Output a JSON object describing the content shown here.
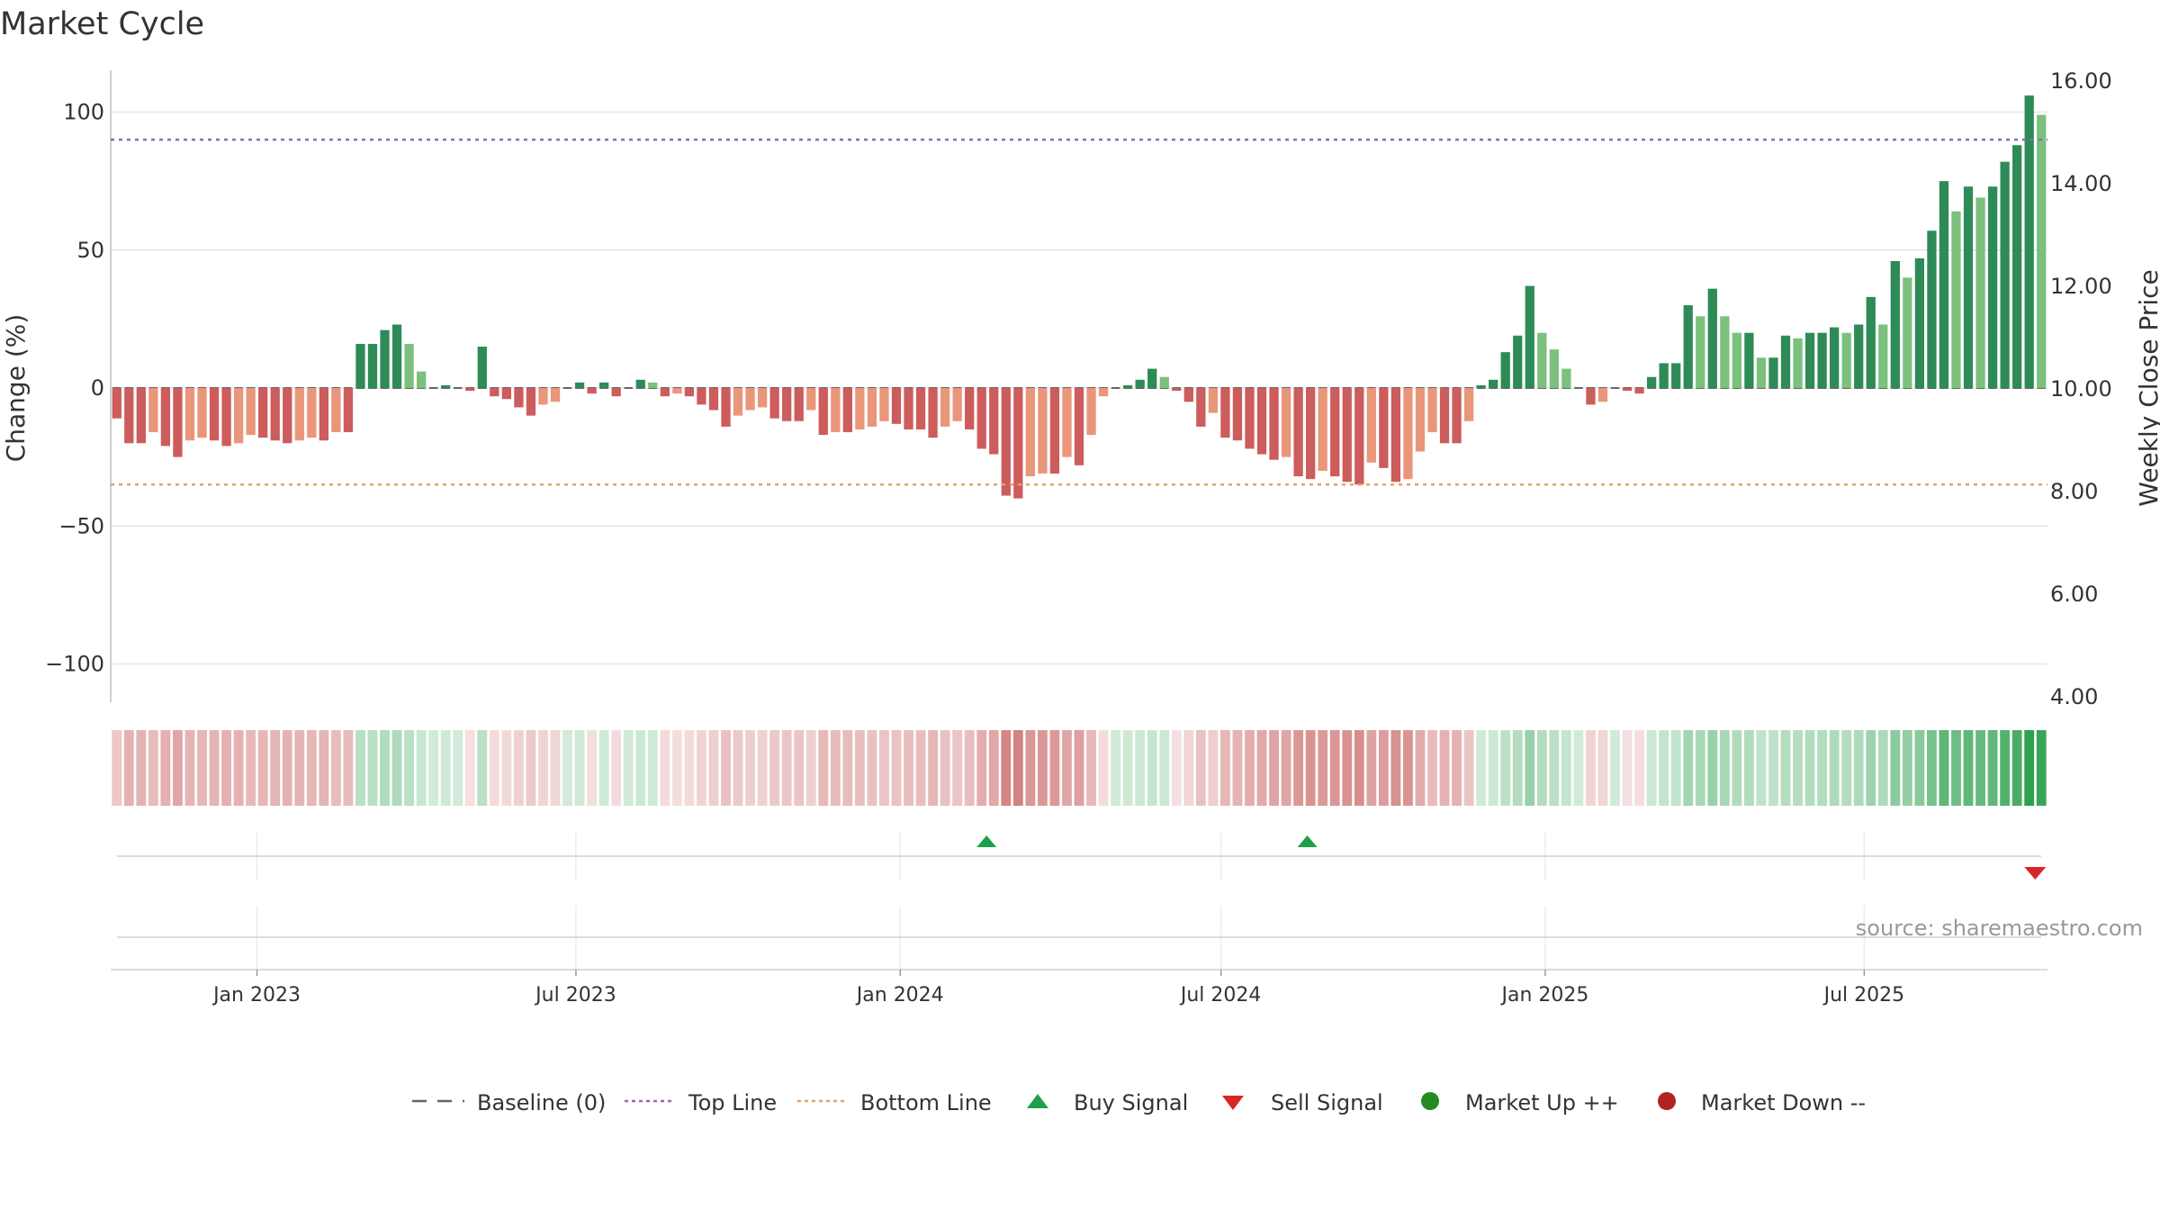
{
  "chart_data": {
    "type": "bar",
    "title": "Market Cycle",
    "ylabel": "Change (%)",
    "y2label": "Weekly Close Price",
    "ylim": [
      -115,
      115
    ],
    "y2lim": [
      4,
      16
    ],
    "yticks": [
      100,
      50,
      0,
      -50,
      -100
    ],
    "ytick_labels": [
      "100",
      "50",
      "0",
      "−50",
      "−100"
    ],
    "y2ticks": [
      16,
      14,
      12,
      10,
      8,
      6,
      4
    ],
    "y2tick_labels": [
      "16.00",
      "14.00",
      "12.00",
      "10.00",
      "8.00",
      "6.00",
      "4.00"
    ],
    "x_start": "2022-10-10",
    "x_end": "2025-10-13",
    "xticks": [
      {
        "date": "2023-01-01",
        "label": "Jan 2023"
      },
      {
        "date": "2023-07-01",
        "label": "Jul 2023"
      },
      {
        "date": "2024-01-01",
        "label": "Jan 2024"
      },
      {
        "date": "2024-07-01",
        "label": "Jul 2024"
      },
      {
        "date": "2025-01-01",
        "label": "Jan 2025"
      },
      {
        "date": "2025-07-01",
        "label": "Jul 2025"
      }
    ],
    "reference_lines": [
      {
        "name": "Top Line",
        "value": 90,
        "color": "#9467bd",
        "style": "dotted"
      },
      {
        "name": "Bottom Line",
        "value": -35,
        "color": "#e8a064",
        "style": "dotted"
      }
    ],
    "weekly_change_pct": [
      -11,
      -20,
      -20,
      -16,
      -21,
      -25,
      -19,
      -18,
      -19,
      -21,
      -20,
      -17,
      -18,
      -19,
      -20,
      -19,
      -18,
      -19,
      -16,
      -16,
      16,
      16,
      21,
      23,
      16,
      6,
      0,
      1,
      0,
      -1,
      15,
      -3,
      -4,
      -7,
      -10,
      -6,
      -5,
      0,
      2,
      -2,
      2,
      -3,
      0,
      3,
      2,
      -3,
      -2,
      -3,
      -6,
      -8,
      -14,
      -10,
      -8,
      -7,
      -11,
      -12,
      -12,
      -8,
      -17,
      -16,
      -16,
      -15,
      -14,
      -12,
      -13,
      -15,
      -15,
      -18,
      -14,
      -12,
      -15,
      -22,
      -24,
      -39,
      -40,
      -32,
      -31,
      -31,
      -25,
      -28,
      -17,
      -3,
      0,
      1,
      3,
      7,
      4,
      -1,
      -5,
      -14,
      -9,
      -18,
      -19,
      -22,
      -24,
      -26,
      -25,
      -32,
      -33,
      -30,
      -32,
      -34,
      -35,
      -27,
      -29,
      -34,
      -33,
      -23,
      -16,
      -20,
      -20,
      -12,
      1,
      3,
      13,
      19,
      37,
      20,
      14,
      7,
      0,
      -6,
      -5,
      0,
      -1,
      -2,
      4,
      9,
      9,
      30,
      26,
      36,
      26,
      20,
      20,
      11,
      11,
      19,
      18,
      20,
      20,
      22,
      20,
      23,
      33,
      23,
      46,
      40,
      47,
      57,
      75,
      64,
      73,
      69,
      73,
      82,
      88,
      106,
      99
    ],
    "series_colors": {
      "up_strong": "#2e8b57",
      "up_weak": "#7cc07e",
      "down_strong": "#cd5c5c",
      "down_weak": "#e9967a"
    },
    "signals": [
      {
        "type": "buy",
        "date": "2024-02-19",
        "marker": "triangle-up",
        "color": "#1ea04a"
      },
      {
        "type": "buy",
        "date": "2024-08-19",
        "marker": "triangle-up",
        "color": "#1ea04a"
      },
      {
        "type": "sell",
        "date": "2025-10-06",
        "marker": "triangle-down",
        "color": "#d62728"
      }
    ],
    "legend": [
      {
        "key": "baseline",
        "label": "Baseline (0)",
        "symbol": "dash",
        "color": "#666666"
      },
      {
        "key": "top",
        "label": "Top Line",
        "symbol": "dotted",
        "color": "#9467bd"
      },
      {
        "key": "bottom",
        "label": "Bottom Line",
        "symbol": "dotted",
        "color": "#e8a064"
      },
      {
        "key": "buy",
        "label": "Buy Signal",
        "symbol": "triangle-up",
        "color": "#1ea04a"
      },
      {
        "key": "sell",
        "label": "Sell Signal",
        "symbol": "triangle-down",
        "color": "#d62728"
      },
      {
        "key": "up",
        "label": "Market Up ++",
        "symbol": "circle",
        "color": "#228b22"
      },
      {
        "key": "down",
        "label": "Market Down --",
        "symbol": "circle",
        "color": "#b22222"
      }
    ],
    "legend_position": "bottom-center",
    "grid": true,
    "source": "source: sharemaestro.com"
  }
}
